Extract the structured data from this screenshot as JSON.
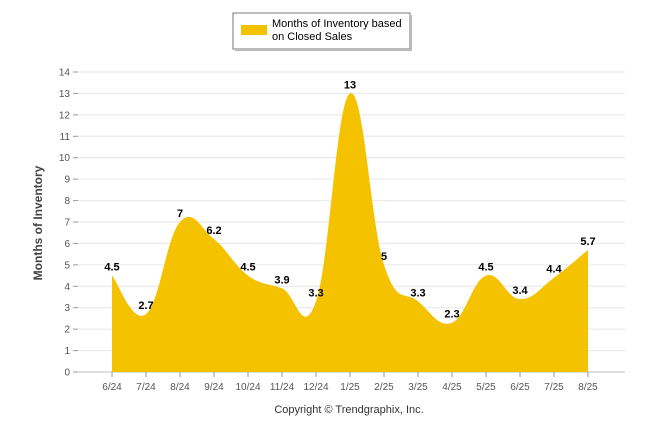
{
  "chart_data": {
    "type": "area",
    "categories": [
      "6/24",
      "7/24",
      "8/24",
      "9/24",
      "10/24",
      "11/24",
      "12/24",
      "1/25",
      "2/25",
      "3/25",
      "4/25",
      "5/25",
      "6/25",
      "7/25",
      "8/25"
    ],
    "series": [
      {
        "name": "Months of Inventory based on Closed Sales",
        "legend_lines": [
          "Months of Inventory based",
          "on Closed Sales"
        ],
        "values": [
          4.5,
          2.7,
          7,
          6.2,
          4.5,
          3.9,
          3.3,
          13,
          5,
          3.3,
          2.3,
          4.5,
          3.4,
          4.4,
          5.7
        ],
        "color": "#F5C200"
      }
    ],
    "data_labels": [
      "4.5",
      "2.7",
      "7",
      "6.2",
      "4.5",
      "3.9",
      "3.3",
      "13",
      "5",
      "3.3",
      "2.3",
      "4.5",
      "3.4",
      "4.4",
      "5.7"
    ],
    "ylabel": "Months of Inventory",
    "xlabel": "",
    "ylim": [
      0,
      14
    ],
    "yticks": [
      0,
      1,
      2,
      3,
      4,
      5,
      6,
      7,
      8,
      9,
      10,
      11,
      12,
      13,
      14
    ],
    "grid": true,
    "legend_position": "top-center"
  },
  "footer": {
    "copyright": "Copyright © Trendgraphix, Inc."
  }
}
